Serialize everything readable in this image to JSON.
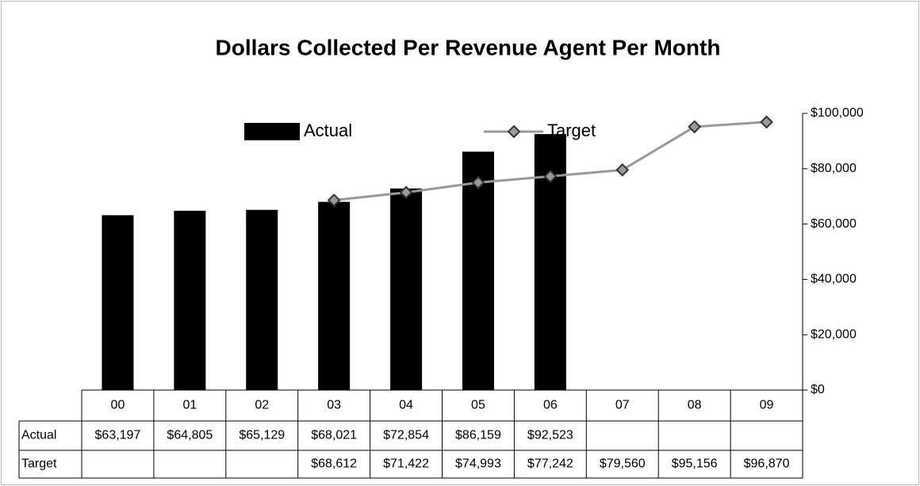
{
  "chart_data": {
    "type": "bar_line",
    "title": "Dollars Collected Per Revenue Agent Per Month",
    "categories": [
      "00",
      "01",
      "02",
      "03",
      "04",
      "05",
      "06",
      "07",
      "08",
      "09"
    ],
    "series": [
      {
        "name": "Actual",
        "type": "bar",
        "color": "#000000",
        "values": [
          63197,
          64805,
          65129,
          68021,
          72854,
          86159,
          92523,
          null,
          null,
          null
        ],
        "value_labels": [
          "$63,197",
          "$64,805",
          "$65,129",
          "$68,021",
          "$72,854",
          "$86,159",
          "$92,523",
          null,
          null,
          null
        ]
      },
      {
        "name": "Target",
        "type": "line",
        "color": "#999999",
        "values": [
          null,
          null,
          null,
          68612,
          71422,
          74993,
          77242,
          79560,
          95156,
          96870
        ],
        "value_labels": [
          null,
          null,
          null,
          "$68,612",
          "$71,422",
          "$74,993",
          "$77,242",
          "$79,560",
          "$95,156",
          "$96,870"
        ]
      }
    ],
    "ylim": [
      0,
      100000
    ],
    "yticks": [
      {
        "value": 0,
        "label": "$0"
      },
      {
        "value": 20000,
        "label": "$20,000"
      },
      {
        "value": 40000,
        "label": "$40,000"
      },
      {
        "value": 60000,
        "label": "$60,000"
      },
      {
        "value": 80000,
        "label": "$80,000"
      },
      {
        "value": 100000,
        "label": "$100,000"
      }
    ],
    "y_axis_side": "right",
    "data_table": true,
    "legend": "top"
  }
}
